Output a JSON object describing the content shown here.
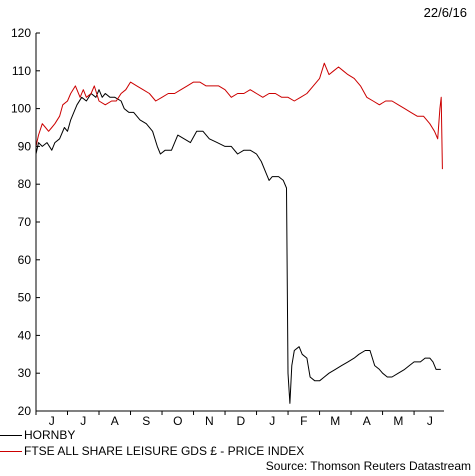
{
  "date_label": "22/6/16",
  "source": "Source: Thomson Reuters Datastream",
  "colors": {
    "hornby": "#000000",
    "ftse": "#cc0000"
  },
  "chart_data": {
    "type": "line",
    "title": "",
    "xlabel": "",
    "ylabel": "",
    "ylim": [
      20,
      120
    ],
    "yticks": [
      20,
      30,
      40,
      50,
      60,
      70,
      80,
      90,
      100,
      110,
      120
    ],
    "month_labels": [
      "J",
      "J",
      "A",
      "S",
      "O",
      "N",
      "D",
      "J",
      "F",
      "M",
      "A",
      "M",
      "J"
    ],
    "x_range_months": [
      0,
      12.95
    ],
    "grid": false,
    "legend_position": "bottom-left",
    "series": [
      {
        "name": "HORNBY",
        "color": "#000000",
        "points": [
          [
            0.0,
            88
          ],
          [
            0.08,
            91
          ],
          [
            0.2,
            90
          ],
          [
            0.35,
            91
          ],
          [
            0.5,
            89
          ],
          [
            0.6,
            91
          ],
          [
            0.75,
            92
          ],
          [
            0.9,
            95
          ],
          [
            1.0,
            94
          ],
          [
            1.1,
            97
          ],
          [
            1.2,
            99
          ],
          [
            1.3,
            101
          ],
          [
            1.45,
            103
          ],
          [
            1.6,
            102
          ],
          [
            1.75,
            104
          ],
          [
            1.9,
            103
          ],
          [
            2.0,
            105
          ],
          [
            2.1,
            103
          ],
          [
            2.2,
            104
          ],
          [
            2.35,
            103
          ],
          [
            2.5,
            103
          ],
          [
            2.7,
            102
          ],
          [
            2.8,
            100
          ],
          [
            2.95,
            99
          ],
          [
            3.1,
            99
          ],
          [
            3.3,
            97
          ],
          [
            3.5,
            96
          ],
          [
            3.7,
            94
          ],
          [
            3.85,
            90
          ],
          [
            3.95,
            88
          ],
          [
            4.1,
            89
          ],
          [
            4.3,
            89
          ],
          [
            4.5,
            93
          ],
          [
            4.7,
            92
          ],
          [
            4.9,
            91
          ],
          [
            5.1,
            94
          ],
          [
            5.3,
            94
          ],
          [
            5.5,
            92
          ],
          [
            5.75,
            91
          ],
          [
            6.0,
            90
          ],
          [
            6.2,
            90
          ],
          [
            6.4,
            88
          ],
          [
            6.6,
            89
          ],
          [
            6.8,
            89
          ],
          [
            7.0,
            88
          ],
          [
            7.15,
            86
          ],
          [
            7.3,
            83
          ],
          [
            7.4,
            81
          ],
          [
            7.5,
            82
          ],
          [
            7.7,
            82
          ],
          [
            7.85,
            81
          ],
          [
            7.95,
            79
          ],
          [
            8.0,
            30
          ],
          [
            8.06,
            22
          ],
          [
            8.12,
            32
          ],
          [
            8.2,
            36
          ],
          [
            8.35,
            37
          ],
          [
            8.45,
            35
          ],
          [
            8.6,
            34
          ],
          [
            8.7,
            29
          ],
          [
            8.85,
            28
          ],
          [
            9.0,
            28
          ],
          [
            9.15,
            29
          ],
          [
            9.3,
            30
          ],
          [
            9.5,
            31
          ],
          [
            9.7,
            32
          ],
          [
            9.9,
            33
          ],
          [
            10.1,
            34
          ],
          [
            10.25,
            35
          ],
          [
            10.45,
            36
          ],
          [
            10.6,
            36
          ],
          [
            10.75,
            32
          ],
          [
            10.9,
            31
          ],
          [
            11.0,
            30
          ],
          [
            11.15,
            29
          ],
          [
            11.3,
            29
          ],
          [
            11.5,
            30
          ],
          [
            11.7,
            31
          ],
          [
            11.85,
            32
          ],
          [
            12.0,
            33
          ],
          [
            12.2,
            33
          ],
          [
            12.35,
            34
          ],
          [
            12.5,
            34
          ],
          [
            12.6,
            33
          ],
          [
            12.7,
            31
          ],
          [
            12.85,
            31
          ]
        ]
      },
      {
        "name": "FTSE ALL SHARE LEISURE GDS £ - PRICE INDEX",
        "color": "#cc0000",
        "points": [
          [
            0.0,
            90
          ],
          [
            0.08,
            93
          ],
          [
            0.2,
            96
          ],
          [
            0.3,
            95
          ],
          [
            0.4,
            94
          ],
          [
            0.5,
            95
          ],
          [
            0.6,
            96
          ],
          [
            0.75,
            98
          ],
          [
            0.85,
            101
          ],
          [
            1.0,
            102
          ],
          [
            1.1,
            104
          ],
          [
            1.25,
            106
          ],
          [
            1.4,
            103
          ],
          [
            1.5,
            105
          ],
          [
            1.6,
            103
          ],
          [
            1.75,
            104
          ],
          [
            1.85,
            106
          ],
          [
            2.0,
            102
          ],
          [
            2.2,
            101
          ],
          [
            2.4,
            102
          ],
          [
            2.55,
            102
          ],
          [
            2.7,
            104
          ],
          [
            2.85,
            105
          ],
          [
            3.0,
            107
          ],
          [
            3.2,
            106
          ],
          [
            3.4,
            105
          ],
          [
            3.6,
            104
          ],
          [
            3.8,
            102
          ],
          [
            4.0,
            103
          ],
          [
            4.2,
            104
          ],
          [
            4.4,
            104
          ],
          [
            4.6,
            105
          ],
          [
            4.8,
            106
          ],
          [
            5.0,
            107
          ],
          [
            5.2,
            107
          ],
          [
            5.4,
            106
          ],
          [
            5.6,
            106
          ],
          [
            5.8,
            106
          ],
          [
            6.0,
            105
          ],
          [
            6.2,
            103
          ],
          [
            6.4,
            104
          ],
          [
            6.6,
            104
          ],
          [
            6.8,
            105
          ],
          [
            7.0,
            104
          ],
          [
            7.2,
            103
          ],
          [
            7.4,
            104
          ],
          [
            7.6,
            104
          ],
          [
            7.8,
            103
          ],
          [
            8.0,
            103
          ],
          [
            8.2,
            102
          ],
          [
            8.4,
            103
          ],
          [
            8.6,
            104
          ],
          [
            8.8,
            106
          ],
          [
            9.0,
            108
          ],
          [
            9.15,
            112
          ],
          [
            9.3,
            109
          ],
          [
            9.45,
            110
          ],
          [
            9.6,
            111
          ],
          [
            9.75,
            110
          ],
          [
            9.9,
            109
          ],
          [
            10.1,
            108
          ],
          [
            10.3,
            106
          ],
          [
            10.5,
            103
          ],
          [
            10.7,
            102
          ],
          [
            10.9,
            101
          ],
          [
            11.1,
            102
          ],
          [
            11.3,
            102
          ],
          [
            11.5,
            101
          ],
          [
            11.7,
            100
          ],
          [
            11.9,
            99
          ],
          [
            12.1,
            98
          ],
          [
            12.3,
            98
          ],
          [
            12.5,
            96
          ],
          [
            12.65,
            94
          ],
          [
            12.75,
            92
          ],
          [
            12.82,
            100
          ],
          [
            12.86,
            103
          ],
          [
            12.9,
            84
          ]
        ]
      }
    ]
  }
}
